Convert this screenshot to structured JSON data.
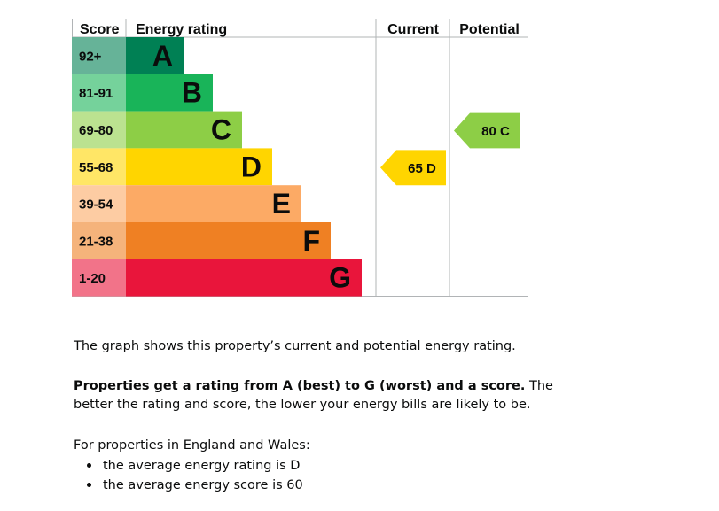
{
  "chart_data": {
    "type": "bar",
    "columns": {
      "score": "Score",
      "rating": "Energy rating",
      "current": "Current",
      "potential": "Potential"
    },
    "bands": [
      {
        "letter": "A",
        "range": "92+",
        "color": "#008054",
        "range_color": "#66b398"
      },
      {
        "letter": "B",
        "range": "81-91",
        "color": "#19b459",
        "range_color": "#75d29b"
      },
      {
        "letter": "C",
        "range": "69-80",
        "color": "#8dce46",
        "range_color": "#bbe290"
      },
      {
        "letter": "D",
        "range": "55-68",
        "color": "#ffd500",
        "range_color": "#ffe666"
      },
      {
        "letter": "E",
        "range": "39-54",
        "color": "#fcaa65",
        "range_color": "#fdcca3"
      },
      {
        "letter": "F",
        "range": "21-38",
        "color": "#ef8023",
        "range_color": "#f5b37b"
      },
      {
        "letter": "G",
        "range": "1-20",
        "color": "#e9153b",
        "range_color": "#f27389"
      }
    ],
    "current": {
      "score": 65,
      "letter": "D",
      "label": "65 D",
      "color": "#ffd500"
    },
    "potential": {
      "score": 80,
      "letter": "C",
      "label": "80 C",
      "color": "#8dce46"
    }
  },
  "description": {
    "intro": "The graph shows this property’s current and potential energy rating.",
    "rating_bold": "Properties get a rating from A (best) to G (worst) and a score.",
    "rating_rest": " The better the rating and score, the lower your energy bills are likely to be.",
    "region": "For properties in England and Wales:",
    "averages": [
      "the average energy rating is D",
      "the average energy score is 60"
    ]
  }
}
